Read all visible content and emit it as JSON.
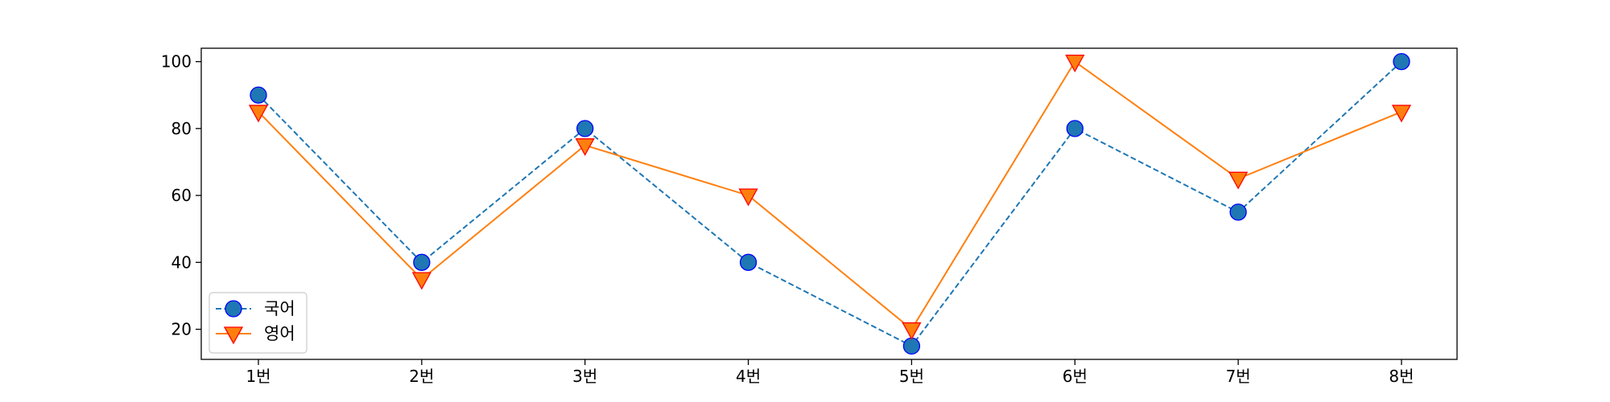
{
  "chart_data": {
    "type": "line",
    "categories": [
      "1번",
      "2번",
      "3번",
      "4번",
      "5번",
      "6번",
      "7번",
      "8번"
    ],
    "y_ticks": [
      20,
      40,
      60,
      80,
      100
    ],
    "ylim": [
      11,
      104
    ],
    "grid": false,
    "legend_position": "lower-left",
    "series": [
      {
        "name": "국어",
        "values": [
          90,
          40,
          80,
          40,
          15,
          80,
          55,
          100
        ],
        "color": "#1f77b4",
        "line_style": "dashed",
        "marker": "circle",
        "marker_edge": "#0000ff"
      },
      {
        "name": "영어",
        "values": [
          85,
          35,
          75,
          60,
          20,
          100,
          65,
          85
        ],
        "color": "#ff7f0e",
        "line_style": "solid",
        "marker": "triangle-down",
        "marker_edge": "#ff0000"
      }
    ]
  }
}
